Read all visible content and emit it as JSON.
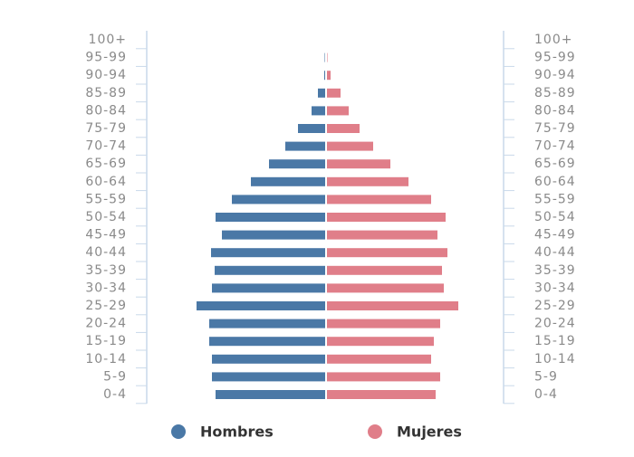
{
  "chart_data": {
    "type": "pyramid",
    "categories": [
      "100+",
      "95-99",
      "90-94",
      "85-89",
      "80-84",
      "75-79",
      "70-74",
      "65-69",
      "60-64",
      "55-59",
      "50-54",
      "45-49",
      "40-44",
      "35-39",
      "30-34",
      "25-29",
      "20-24",
      "15-19",
      "10-14",
      "5-9",
      "0-4"
    ],
    "series": [
      {
        "name": "Hombres",
        "color": "#4a78a6",
        "values": [
          0,
          0.5,
          1,
          8,
          15,
          30,
          44,
          62,
          82,
          103,
          121,
          114,
          126,
          122,
          125,
          142,
          128,
          128,
          125,
          125,
          121
        ]
      },
      {
        "name": "Mujeres",
        "color": "#e07e89",
        "values": [
          0,
          0.5,
          4,
          15,
          24,
          36,
          51,
          70,
          90,
          115,
          131,
          122,
          133,
          127,
          129,
          145,
          125,
          118,
          115,
          125,
          120
        ]
      }
    ]
  }
}
